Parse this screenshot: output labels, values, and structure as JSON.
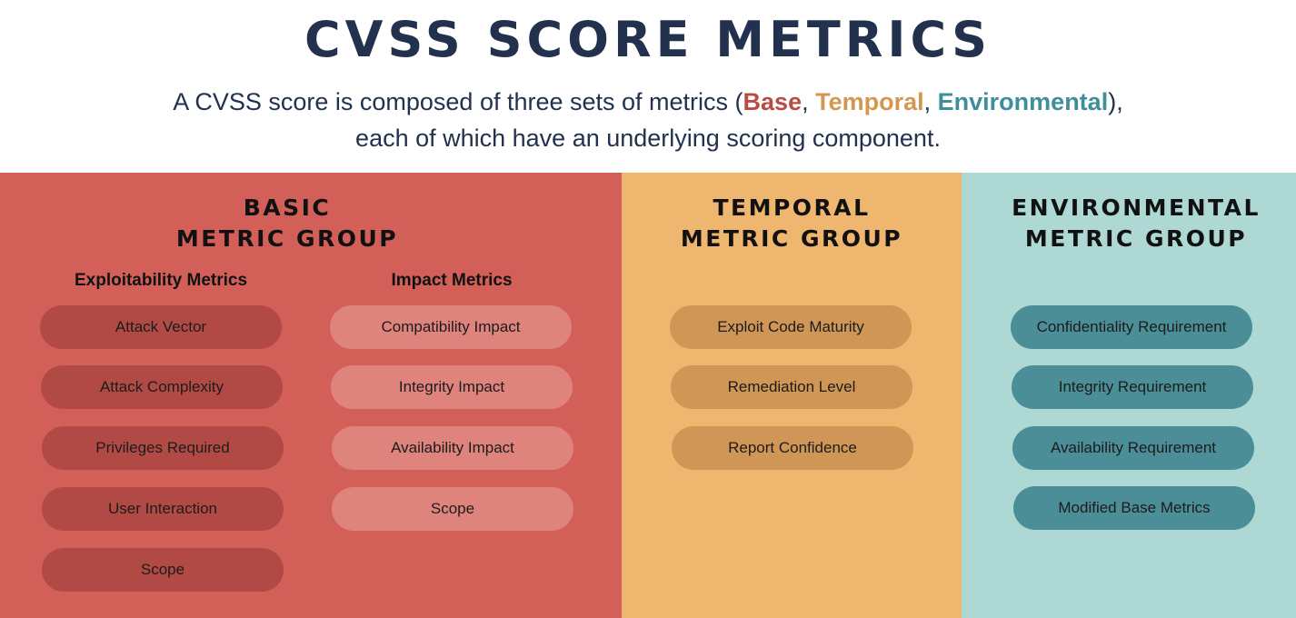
{
  "colors": {
    "title_text": "#22324e",
    "base_panel": "#d35f59",
    "base_pill_dark": "#b14a44",
    "base_pill_light": "#df847d",
    "temporal_panel": "#eeb66e",
    "temporal_pill": "#cf9655",
    "environmental_panel": "#add8d4",
    "environmental_pill": "#4b8e98",
    "base_word": "#b94c44",
    "temporal_word": "#d4974f",
    "environmental_word": "#3f8e99",
    "group_title_text": "#111111"
  },
  "title": "CVSS SCORE METRICS",
  "subtitle": {
    "line1_pre": "A CVSS score is composed of three sets of metrics (",
    "base": "Base",
    "sep1": ", ",
    "temporal": "Temporal",
    "sep2": ", ",
    "environmental": "Environmental",
    "line1_post": "),",
    "line2": "each of which have an underlying scoring component."
  },
  "base_group": {
    "title_line1": "BASIC",
    "title_line2": "METRIC GROUP",
    "exploitability": {
      "heading": "Exploitability Metrics",
      "items": [
        "Attack Vector",
        "Attack Complexity",
        "Privileges Required",
        "User Interaction",
        "Scope"
      ]
    },
    "impact": {
      "heading": "Impact Metrics",
      "items": [
        "Compatibility Impact",
        "Integrity Impact",
        "Availability Impact",
        "Scope"
      ]
    }
  },
  "temporal_group": {
    "title_line1": "TEMPORAL",
    "title_line2": "METRIC GROUP",
    "items": [
      "Exploit Code Maturity",
      "Remediation Level",
      "Report Confidence"
    ]
  },
  "environmental_group": {
    "title_line1": "ENVIRONMENTAL",
    "title_line2": "METRIC GROUP",
    "items": [
      "Confidentiality Requirement",
      "Integrity Requirement",
      "Availability Requirement",
      "Modified Base Metrics"
    ]
  }
}
